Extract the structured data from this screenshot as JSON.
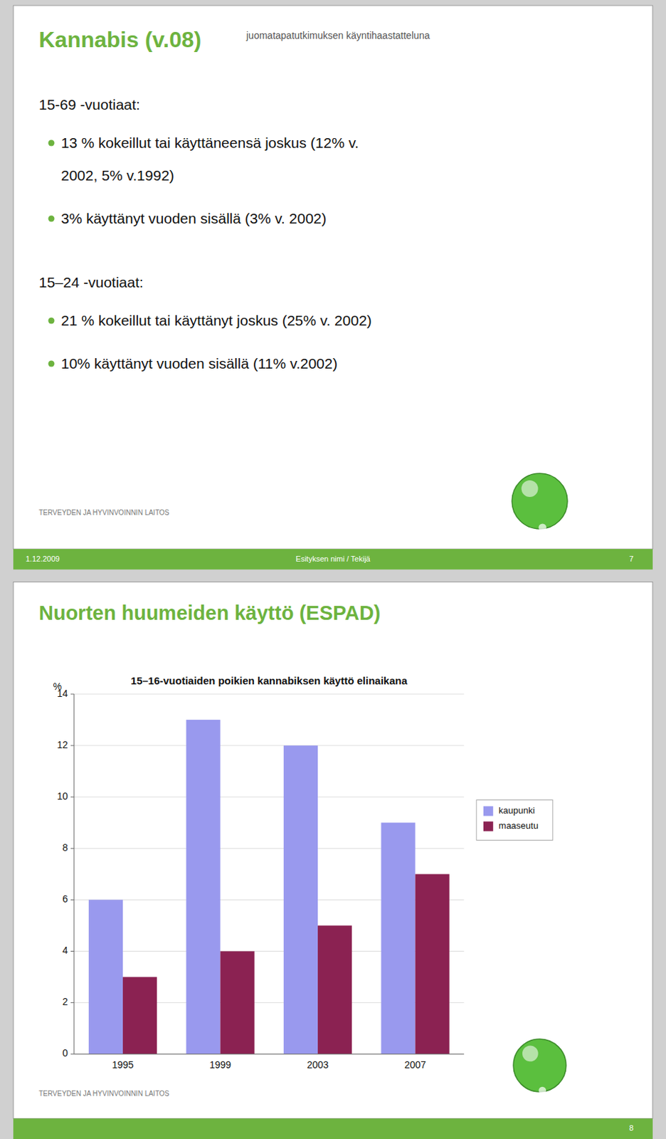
{
  "slides": [
    {
      "title": "Kannabis (v.08)",
      "subtitle": "juomatapatutkimuksen käyntihaastatteluna",
      "color": "#6db33f",
      "sections": [
        {
          "header": "15-69 -vuotiaat:",
          "bullets": [
            [
              "13 % kokeillut tai käyttäneensä joskus (12% v.",
              "2002, 5% v.1992)"
            ],
            [
              "3% käyttänyt vuoden sisällä (3% v. 2002)"
            ]
          ]
        },
        {
          "header": "15–24 -vuotiaat:",
          "bullets": [
            [
              "21 % kokeillut tai käyttänyt joskus (25% v. 2002)"
            ],
            [
              "10% käyttänyt vuoden sisällä (11% v.2002)"
            ]
          ]
        }
      ],
      "footer_left": "TERVEYDEN JA HYVINVOINNIN LAITOS",
      "footer_date": "1.12.2009",
      "footer_center": "Esityksen nimi / Tekijä",
      "footer_right": "7"
    },
    {
      "title": "Nuorten huumeiden käyttö (ESPAD)",
      "color": "#6db33f",
      "footer_left": "TERVEYDEN JA HYVINVOINNIN LAITOS",
      "footer_right": "8"
    }
  ],
  "chart_data": {
    "type": "bar",
    "title": "15–16-vuotiaiden poikien kannabiksen käyttö elinaikana",
    "y_label": "%",
    "categories": [
      "1995",
      "1999",
      "2003",
      "2007"
    ],
    "series": [
      {
        "name": "kaupunki",
        "color": "#9999ee",
        "values": [
          6,
          13,
          12,
          9
        ]
      },
      {
        "name": "maaseutu",
        "color": "#8b2252",
        "values": [
          3,
          4,
          5,
          7
        ]
      }
    ],
    "ylim": [
      0,
      14
    ],
    "yticks": [
      0,
      2,
      4,
      6,
      8,
      10,
      12,
      14
    ],
    "grid": true,
    "legend": "right"
  }
}
